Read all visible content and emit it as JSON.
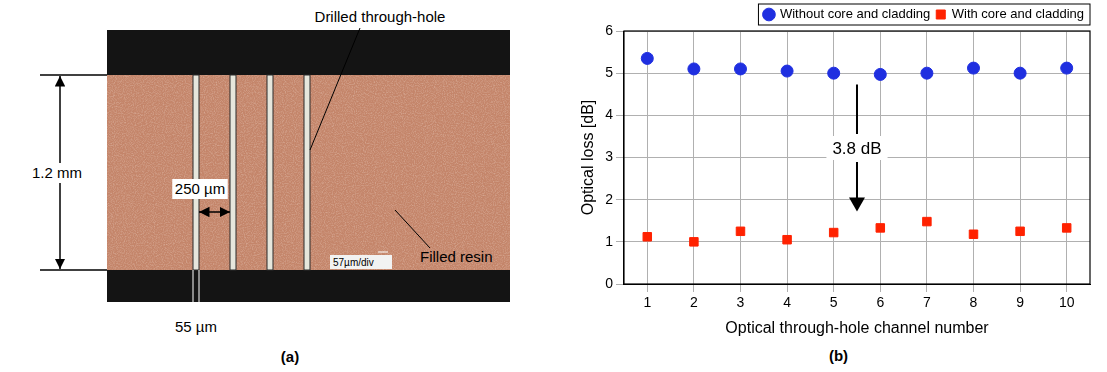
{
  "micrograph": {
    "panel_label": "(a)",
    "height_label": "1.2 mm",
    "pitch_label": "250 µm",
    "hole_width_label": "55 µm",
    "hole_label": "Drilled through-hole",
    "resin_label": "Filled resin",
    "scale_label": "57µm/div"
  },
  "chart_data": {
    "type": "scatter",
    "panel_label": "(b)",
    "x_label": "Optical through-hole channel number",
    "y_label": "Optical loss [dB]",
    "annotation": "3.8 dB",
    "x": [
      1,
      2,
      3,
      4,
      5,
      6,
      7,
      8,
      9,
      10
    ],
    "series": [
      {
        "name": "Without core and cladding",
        "color": "#1f2fe0",
        "marker": "circle",
        "values": [
          5.35,
          5.1,
          5.1,
          5.05,
          5.0,
          4.97,
          5.0,
          5.12,
          5.0,
          5.12
        ]
      },
      {
        "name": "With core and cladding",
        "color": "#ff2200",
        "marker": "square",
        "values": [
          1.12,
          1.0,
          1.25,
          1.05,
          1.22,
          1.33,
          1.48,
          1.18,
          1.25,
          1.33
        ]
      }
    ],
    "xlim": [
      0.5,
      10.5
    ],
    "xticks": [
      1,
      2,
      3,
      4,
      5,
      6,
      7,
      8,
      9,
      10
    ],
    "ylim": [
      0,
      6
    ],
    "yticks": [
      0,
      1,
      2,
      3,
      4,
      5,
      6
    ],
    "grid": true,
    "legend": "top-right"
  }
}
